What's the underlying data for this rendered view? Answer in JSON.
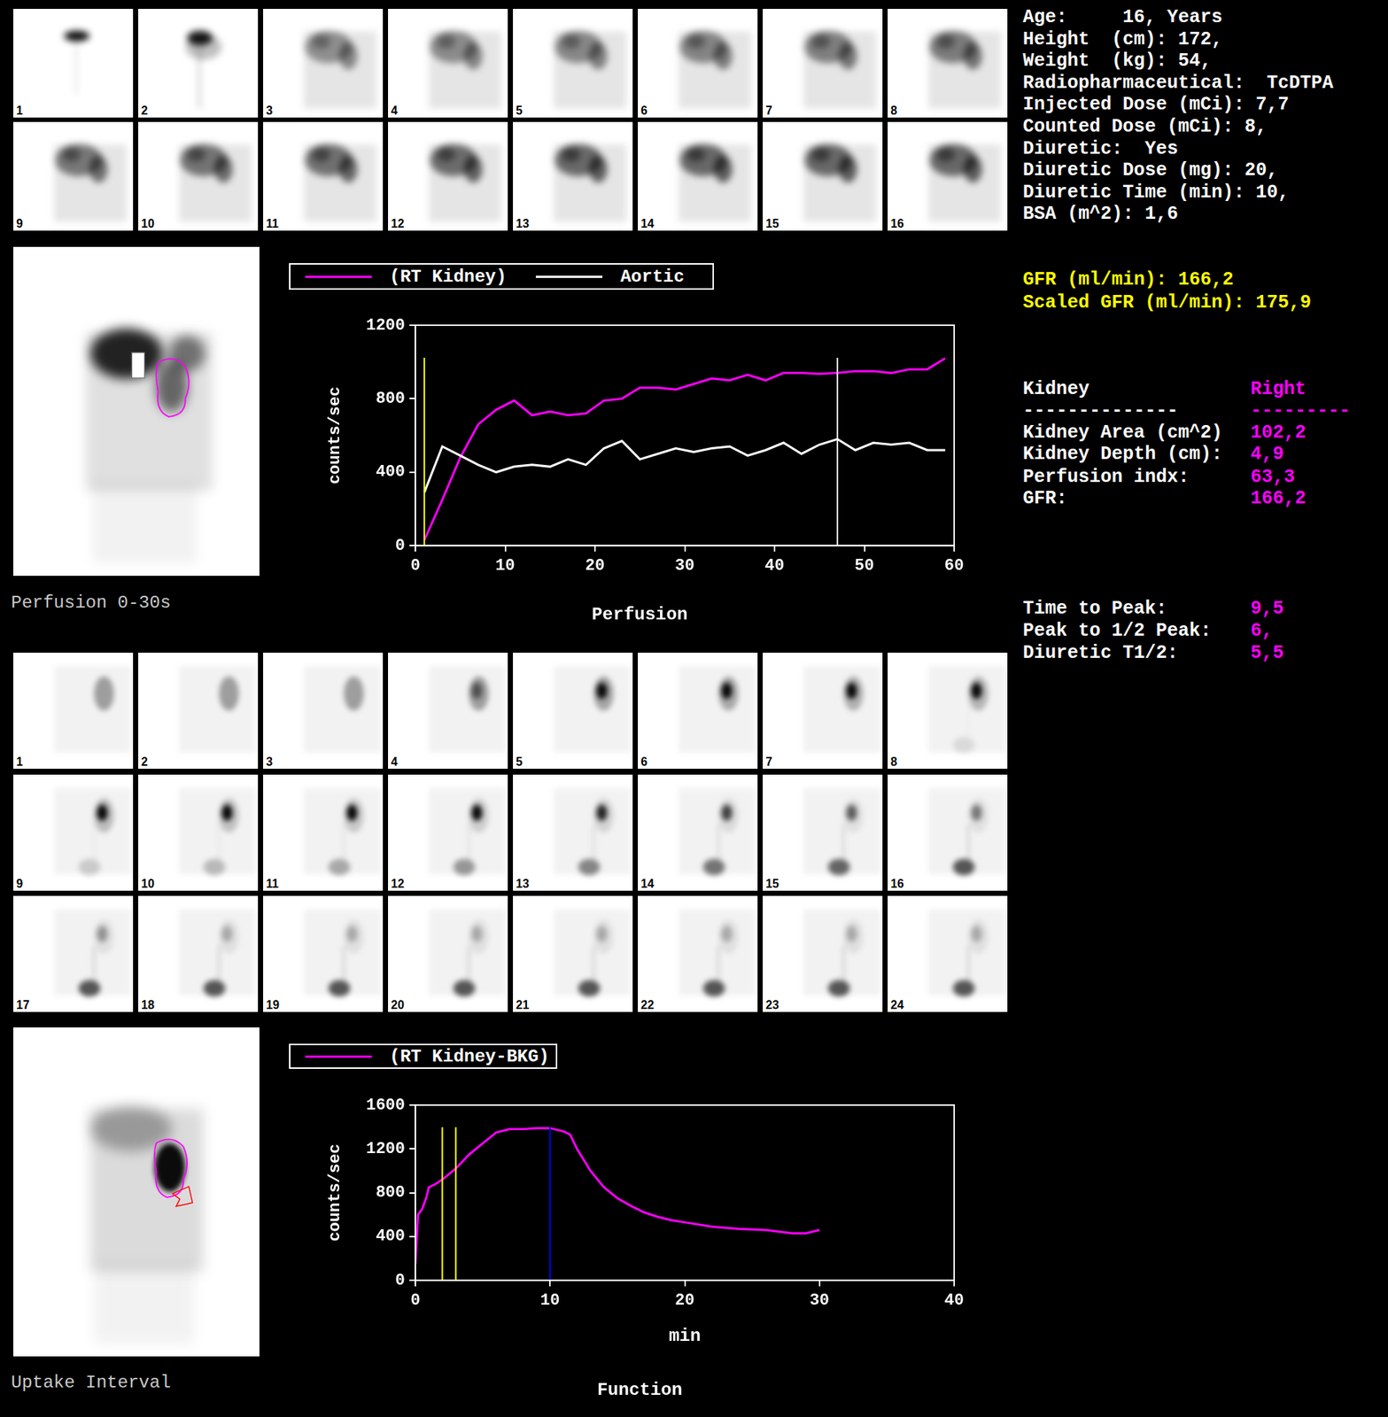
{
  "header": {
    "lines": [
      "Age:     16, Years",
      "Height  (cm): 172,",
      "Weight  (kg): 54,",
      "Radiopharmaceutical:  TcDTPA",
      "Injected Dose (mCi): 7,7",
      "Counted Dose (mCi): 8,",
      "Diuretic:  Yes",
      "Diuretic Dose (mg): 20,",
      "Diuretic Time (min): 10,",
      "BSA (m^2): 1,6"
    ]
  },
  "gfr": [
    "GFR (ml/min): 166,2",
    "Scaled GFR (ml/min): 175,9"
  ],
  "kidney_table": {
    "header": [
      "Kidney",
      "Right"
    ],
    "rule": [
      "--------------",
      "---------"
    ],
    "rows": [
      [
        "Kidney Area (cm^2)",
        "102,2"
      ],
      [
        "Kidney Depth (cm):",
        "4,9"
      ],
      [
        "Perfusion indx:",
        "63,3"
      ],
      [
        "GFR:",
        "166,2"
      ]
    ]
  },
  "timing": [
    [
      "Time to Peak:",
      "9,5"
    ],
    [
      "Peak to 1/2 Peak:",
      "6,"
    ],
    [
      "Diuretic T1/2:",
      "5,5"
    ]
  ],
  "frames": {
    "perfusion": [
      1,
      2,
      3,
      4,
      5,
      6,
      7,
      8,
      9,
      10,
      11,
      12,
      13,
      14,
      15,
      16
    ],
    "function": [
      1,
      2,
      3,
      4,
      5,
      6,
      7,
      8,
      9,
      10,
      11,
      12,
      13,
      14,
      15,
      16,
      17,
      18,
      19,
      20,
      21,
      22,
      23,
      24
    ]
  },
  "image_captions": [
    "Perfusion 0-30s",
    "Uptake Interval"
  ],
  "chart_data": [
    {
      "type": "line",
      "title": "Perfusion",
      "ylabel": "counts/sec",
      "x": [
        1,
        3,
        5,
        7,
        9,
        11,
        13,
        15,
        17,
        19,
        21,
        23,
        25,
        27,
        29,
        31,
        33,
        35,
        37,
        39,
        41,
        43,
        45,
        47,
        49,
        51,
        53,
        55,
        57,
        59
      ],
      "series": [
        {
          "name": "(RT Kidney)",
          "color": "#ff00ff",
          "values": [
            30,
            250,
            480,
            660,
            740,
            790,
            710,
            730,
            710,
            720,
            790,
            800,
            860,
            860,
            850,
            880,
            910,
            900,
            930,
            900,
            940,
            940,
            935,
            940,
            950,
            950,
            940,
            960,
            960,
            1020
          ]
        },
        {
          "name": "Aortic",
          "color": "#ffffff",
          "values": [
            290,
            540,
            490,
            440,
            400,
            430,
            440,
            430,
            470,
            440,
            530,
            570,
            470,
            500,
            530,
            510,
            530,
            540,
            490,
            520,
            560,
            500,
            550,
            580,
            520,
            560,
            550,
            560,
            520,
            520
          ]
        }
      ],
      "xlim": [
        0,
        60
      ],
      "xticks": [
        0,
        10,
        20,
        30,
        40,
        50,
        60
      ],
      "ylim": [
        0,
        1200
      ],
      "yticks": [
        0,
        400,
        800,
        1200
      ],
      "grid": false,
      "legend": "top",
      "vertical_lines": [
        {
          "x": 1,
          "y_top": 1023,
          "color": "#ffff00"
        },
        {
          "x": 47,
          "y_top": 1023,
          "color": "#ffffff"
        }
      ]
    },
    {
      "type": "line",
      "title": "Function",
      "xlabel": "min",
      "ylabel": "counts/sec",
      "x": [
        0,
        0.2,
        0.5,
        0.8,
        1,
        1.5,
        2,
        3,
        4,
        5,
        6,
        7,
        8,
        9,
        10,
        11,
        11.5,
        12,
        13,
        14,
        15,
        16,
        17,
        18,
        19,
        20,
        22,
        24,
        26,
        28,
        29,
        30
      ],
      "series": [
        {
          "name": "(RT Kidney-BKG)",
          "color": "#ff00ff",
          "values": [
            150,
            600,
            650,
            750,
            850,
            880,
            920,
            1020,
            1150,
            1250,
            1350,
            1380,
            1380,
            1390,
            1390,
            1360,
            1330,
            1200,
            1000,
            850,
            750,
            680,
            620,
            580,
            550,
            530,
            490,
            470,
            460,
            430,
            430,
            460
          ]
        }
      ],
      "xlim": [
        0,
        40
      ],
      "xticks": [
        0,
        10,
        20,
        30,
        40
      ],
      "ylim": [
        0,
        1600
      ],
      "yticks": [
        0,
        400,
        800,
        1200,
        1600
      ],
      "grid": false,
      "legend": "top",
      "vertical_lines": [
        {
          "x": 2,
          "y_top": 1398,
          "color": "#ffff00"
        },
        {
          "x": 3,
          "y_top": 1398,
          "color": "#ffff00"
        },
        {
          "x": 10,
          "y_top": 1398,
          "color": "#0000ff"
        }
      ]
    }
  ]
}
